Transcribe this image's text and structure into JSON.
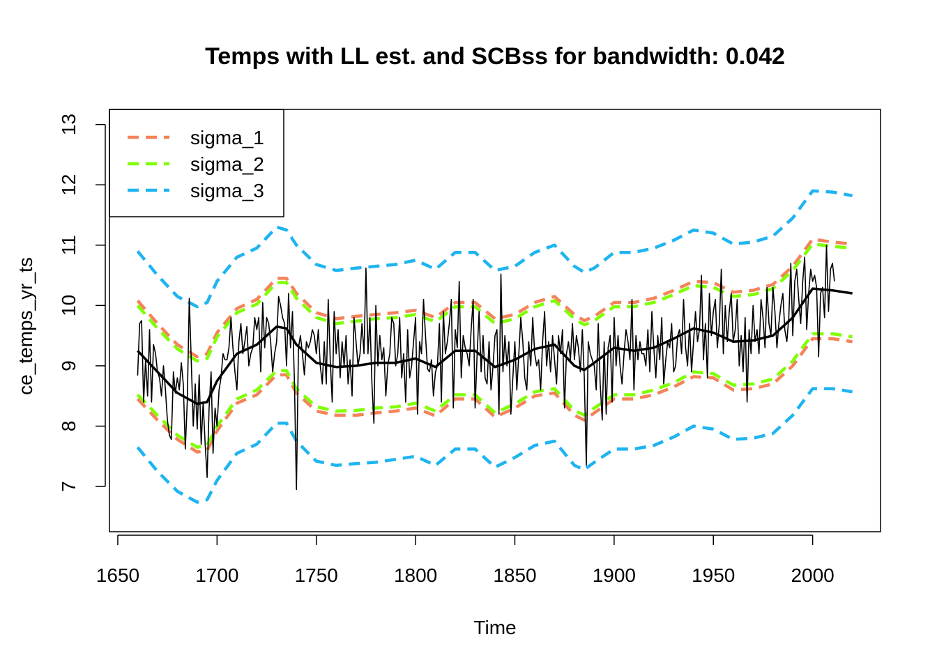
{
  "chart_data": {
    "type": "line",
    "title": "Temps with LL est. and SCBss for bandwidth: 0.042",
    "xlabel": "Time",
    "ylabel": "ce_temps_yr_ts",
    "xlim": [
      1660,
      2020
    ],
    "ylim": [
      7,
      13
    ],
    "x_ticks": [
      "1650",
      "1700",
      "1750",
      "1800",
      "1850",
      "1900",
      "1950",
      "2000"
    ],
    "y_ticks": [
      "7",
      "8",
      "9",
      "10",
      "11",
      "12",
      "13"
    ],
    "grid": false,
    "legend": {
      "placement": "top-left",
      "entries": [
        {
          "label": "sigma_1",
          "color": "#F4835B",
          "style": "dashed"
        },
        {
          "label": "sigma_2",
          "color": "#7FFF00",
          "style": "dashed"
        },
        {
          "label": "sigma_3",
          "color": "#1EB4F0",
          "style": "dashed"
        }
      ]
    },
    "series": [
      {
        "role": "observed",
        "color": "#000000",
        "style": "solid-thin",
        "start_year": 1660,
        "values": [
          8.84,
          9.7,
          9.75,
          8.4,
          9.1,
          8.5,
          9.6,
          8.4,
          9.35,
          9.2,
          8.9,
          8.8,
          8.5,
          9.0,
          8.6,
          8.1,
          7.85,
          7.78,
          8.9,
          8.55,
          8.8,
          8.6,
          9.05,
          8.7,
          7.62,
          8.4,
          10.12,
          9.1,
          8.0,
          8.7,
          7.95,
          8.85,
          7.7,
          8.4,
          7.7,
          7.15,
          8.3,
          8.9,
          7.55,
          8.3,
          8.0,
          8.6,
          8.8,
          9.2,
          9.1,
          9.1,
          9.3,
          9.8,
          9.3,
          8.9,
          8.6,
          9.4,
          9.7,
          9.2,
          9.4,
          9.65,
          9.0,
          9.2,
          9.3,
          9.8,
          9.6,
          9.8,
          8.9,
          10.05,
          9.3,
          9.8,
          9.7,
          9.4,
          8.9,
          9.2,
          9.4,
          10.15,
          10.0,
          9.8,
          9.7,
          9.0,
          10.2,
          9.3,
          9.9,
          8.7,
          6.95,
          9.3,
          9.5,
          9.2,
          8.85,
          9.4,
          9.3,
          9.4,
          9.6,
          9.5,
          9.2,
          9.6,
          9.0,
          8.7,
          9.4,
          8.7,
          10.1,
          9.1,
          8.4,
          9.9,
          9.2,
          9.6,
          8.8,
          9.4,
          9.0,
          9.5,
          8.7,
          9.1,
          8.5,
          9.8,
          9.4,
          9.0,
          9.2,
          9.7,
          9.2,
          10.62,
          9.2,
          9.8,
          8.7,
          8.05,
          10.0,
          9.0,
          9.5,
          9.1,
          9.3,
          8.5,
          9.0,
          9.2,
          9.8,
          9.7,
          9.0,
          9.2,
          9.8,
          8.8,
          9.2,
          8.4,
          9.6,
          8.8,
          9.0,
          9.4,
          9.8,
          8.2,
          9.4,
          9.2,
          10.1,
          9.5,
          8.95,
          8.9,
          9.1,
          8.5,
          8.9,
          9.0,
          9.7,
          8.4,
          9.9,
          9.2,
          9.4,
          9.7,
          10.1,
          8.3,
          9.6,
          9.3,
          10.4,
          8.8,
          9.5,
          9.3,
          9.2,
          9.0,
          9.6,
          10.1,
          8.3,
          9.2,
          9.9,
          8.9,
          9.5,
          8.8,
          8.7,
          9.4,
          8.6,
          9.0,
          9.5,
          9.6,
          8.2,
          10.52,
          8.9,
          9.5,
          9.0,
          9.4,
          8.2,
          8.8,
          9.4,
          8.6,
          9.2,
          9.8,
          9.4,
          8.8,
          8.6,
          9.4,
          9.0,
          9.8,
          9.2,
          9.0,
          9.1,
          8.6,
          9.4,
          9.9,
          9.0,
          9.4,
          8.9,
          9.5,
          9.1,
          8.7,
          9.5,
          9.2,
          9.6,
          8.3,
          9.2,
          9.4,
          9.1,
          9.7,
          9.1,
          9.5,
          9.3,
          8.9,
          9.6,
          8.8,
          7.35,
          9.4,
          9.2,
          9.1,
          9.0,
          8.6,
          9.7,
          8.7,
          8.1,
          9.4,
          8.2,
          9.3,
          9.5,
          8.4,
          9.8,
          9.0,
          9.5,
          9.0,
          8.7,
          9.2,
          9.6,
          9.4,
          9.1,
          10.1,
          8.6,
          9.5,
          9.1,
          9.4,
          9.2,
          9.2,
          9.0,
          9.6,
          8.9,
          9.9,
          9.3,
          8.8,
          9.5,
          9.1,
          9.8,
          8.7,
          9.1,
          9.4,
          9.3,
          9.7,
          8.9,
          9.0,
          9.5,
          9.6,
          9.2,
          10.1,
          9.3,
          9.0,
          9.7,
          8.9,
          9.4,
          9.9,
          9.4,
          9.6,
          10.5,
          9.1,
          9.7,
          8.8,
          10.2,
          9.5,
          9.9,
          10.1,
          9.3,
          9.7,
          10.6,
          9.2,
          10.0,
          9.4,
          9.9,
          10.2,
          9.4,
          9.6,
          10.1,
          9.0,
          9.5,
          8.9,
          9.8,
          8.4,
          9.6,
          9.2,
          10.0,
          9.4,
          9.6,
          9.2,
          10.1,
          9.8,
          9.3,
          10.3,
          9.7,
          9.5,
          10.3,
          9.9,
          9.3,
          9.7,
          10.0,
          10.2,
          9.6,
          9.4,
          9.8,
          10.7,
          9.5,
          10.4,
          10.6,
          10.1,
          9.7,
          10.4,
          10.8,
          9.6,
          10.2,
          10.6,
          10.4,
          10.5,
          10.3,
          9.15,
          10.2,
          10.3,
          9.8,
          11.0,
          9.9,
          10.6,
          10.7,
          10.4
        ]
      },
      {
        "role": "LL estimate",
        "color": "#000000",
        "style": "solid-thick",
        "x": [
          1660,
          1670,
          1680,
          1690,
          1695,
          1700,
          1710,
          1720,
          1730,
          1735,
          1740,
          1750,
          1760,
          1770,
          1780,
          1790,
          1800,
          1810,
          1820,
          1830,
          1840,
          1850,
          1860,
          1870,
          1880,
          1885,
          1890,
          1900,
          1910,
          1920,
          1930,
          1940,
          1950,
          1960,
          1970,
          1980,
          1990,
          2000,
          2010,
          2020
        ],
        "values": [
          9.25,
          8.9,
          8.55,
          8.37,
          8.4,
          8.75,
          9.2,
          9.35,
          9.65,
          9.62,
          9.35,
          9.05,
          8.98,
          9.0,
          9.05,
          9.05,
          9.12,
          8.98,
          9.25,
          9.25,
          8.98,
          9.1,
          9.28,
          9.35,
          9.0,
          8.93,
          9.05,
          9.3,
          9.25,
          9.3,
          9.45,
          9.62,
          9.55,
          9.4,
          9.42,
          9.5,
          9.8,
          10.28,
          10.25,
          10.2
        ]
      },
      {
        "name": "sigma_1",
        "color": "#F4835B",
        "style": "dashed",
        "x": [
          1660,
          1670,
          1680,
          1690,
          1695,
          1700,
          1710,
          1720,
          1730,
          1735,
          1740,
          1750,
          1760,
          1770,
          1780,
          1790,
          1800,
          1810,
          1820,
          1830,
          1840,
          1850,
          1860,
          1870,
          1880,
          1885,
          1890,
          1900,
          1910,
          1920,
          1930,
          1940,
          1950,
          1960,
          1970,
          1980,
          1990,
          2000,
          2010,
          2020
        ],
        "upper": [
          10.08,
          9.7,
          9.35,
          9.15,
          9.2,
          9.55,
          9.95,
          10.1,
          10.45,
          10.45,
          10.2,
          9.88,
          9.78,
          9.82,
          9.85,
          9.88,
          9.92,
          9.8,
          10.05,
          10.05,
          9.78,
          9.85,
          10.05,
          10.15,
          9.85,
          9.75,
          9.82,
          10.05,
          10.05,
          10.12,
          10.25,
          10.4,
          10.38,
          10.22,
          10.25,
          10.35,
          10.65,
          11.1,
          11.05,
          11.02
        ],
        "lower": [
          8.45,
          8.1,
          7.78,
          7.57,
          7.6,
          7.92,
          8.38,
          8.52,
          8.85,
          8.85,
          8.55,
          8.25,
          8.18,
          8.18,
          8.22,
          8.25,
          8.3,
          8.17,
          8.45,
          8.45,
          8.15,
          8.3,
          8.5,
          8.55,
          8.18,
          8.1,
          8.22,
          8.45,
          8.45,
          8.52,
          8.65,
          8.82,
          8.8,
          8.6,
          8.62,
          8.7,
          9.0,
          9.45,
          9.45,
          9.4
        ]
      },
      {
        "name": "sigma_2",
        "color": "#7FFF00",
        "style": "dashed",
        "x": [
          1660,
          1670,
          1680,
          1690,
          1695,
          1700,
          1710,
          1720,
          1730,
          1735,
          1740,
          1750,
          1760,
          1770,
          1780,
          1790,
          1800,
          1810,
          1820,
          1830,
          1840,
          1850,
          1860,
          1870,
          1880,
          1885,
          1890,
          1900,
          1910,
          1920,
          1930,
          1940,
          1950,
          1960,
          1970,
          1980,
          1990,
          2000,
          2010,
          2020
        ],
        "upper": [
          10.0,
          9.62,
          9.28,
          9.08,
          9.12,
          9.48,
          9.88,
          10.02,
          10.38,
          10.38,
          10.12,
          9.8,
          9.7,
          9.74,
          9.78,
          9.8,
          9.85,
          9.73,
          9.98,
          9.98,
          9.7,
          9.78,
          9.98,
          10.08,
          9.78,
          9.68,
          9.75,
          9.98,
          9.98,
          10.05,
          10.18,
          10.33,
          10.3,
          10.15,
          10.18,
          10.28,
          10.58,
          11.02,
          10.98,
          10.95
        ],
        "lower": [
          8.52,
          8.18,
          7.85,
          7.65,
          7.68,
          8.0,
          8.45,
          8.6,
          8.92,
          8.92,
          8.62,
          8.32,
          8.25,
          8.26,
          8.3,
          8.32,
          8.38,
          8.25,
          8.52,
          8.52,
          8.22,
          8.37,
          8.57,
          8.62,
          8.26,
          8.18,
          8.3,
          8.52,
          8.52,
          8.6,
          8.72,
          8.9,
          8.87,
          8.68,
          8.7,
          8.78,
          9.08,
          9.53,
          9.53,
          9.48
        ]
      },
      {
        "name": "sigma_3",
        "color": "#1EB4F0",
        "style": "dashed",
        "x": [
          1660,
          1670,
          1680,
          1690,
          1695,
          1700,
          1710,
          1720,
          1730,
          1735,
          1740,
          1750,
          1760,
          1770,
          1780,
          1790,
          1800,
          1810,
          1820,
          1830,
          1840,
          1850,
          1860,
          1870,
          1880,
          1885,
          1890,
          1900,
          1910,
          1920,
          1930,
          1940,
          1950,
          1960,
          1970,
          1980,
          1990,
          2000,
          2010,
          2020
        ],
        "upper": [
          10.9,
          10.5,
          10.15,
          9.98,
          10.05,
          10.4,
          10.8,
          10.95,
          11.3,
          11.25,
          11.0,
          10.68,
          10.58,
          10.62,
          10.65,
          10.68,
          10.75,
          10.6,
          10.88,
          10.88,
          10.58,
          10.65,
          10.88,
          11.0,
          10.65,
          10.55,
          10.62,
          10.88,
          10.88,
          10.95,
          11.08,
          11.25,
          11.2,
          11.02,
          11.05,
          11.15,
          11.45,
          11.9,
          11.88,
          11.82
        ],
        "lower": [
          7.65,
          7.25,
          6.92,
          6.74,
          6.78,
          7.1,
          7.55,
          7.7,
          8.05,
          8.05,
          7.75,
          7.42,
          7.35,
          7.38,
          7.4,
          7.45,
          7.5,
          7.35,
          7.62,
          7.62,
          7.32,
          7.48,
          7.68,
          7.75,
          7.35,
          7.28,
          7.4,
          7.62,
          7.62,
          7.68,
          7.82,
          8.0,
          7.95,
          7.78,
          7.8,
          7.88,
          8.18,
          8.62,
          8.62,
          8.57
        ]
      }
    ]
  }
}
